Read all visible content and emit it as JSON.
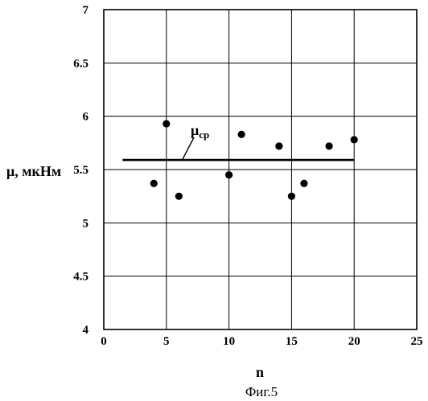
{
  "figure": {
    "caption": "Фиг.5"
  },
  "chart_data": {
    "type": "scatter",
    "xlabel": "n",
    "ylabel": "μ, мкНм",
    "xlim": [
      0,
      25
    ],
    "ylim": [
      4,
      7
    ],
    "x_ticks": [
      0,
      5,
      10,
      15,
      20,
      25
    ],
    "y_ticks": [
      4,
      4.5,
      5,
      5.5,
      6,
      6.5,
      7
    ],
    "x_tick_labels": [
      "0",
      "5",
      "10",
      "15",
      "20",
      "25"
    ],
    "y_tick_labels": [
      "4",
      "4.5",
      "5",
      "5.5",
      "6",
      "6.5",
      "7"
    ],
    "grid": true,
    "points": [
      {
        "x": 4,
        "y": 5.37
      },
      {
        "x": 5,
        "y": 5.93
      },
      {
        "x": 6,
        "y": 5.25
      },
      {
        "x": 10,
        "y": 5.45
      },
      {
        "x": 11,
        "y": 5.83
      },
      {
        "x": 14,
        "y": 5.72
      },
      {
        "x": 15,
        "y": 5.25
      },
      {
        "x": 16,
        "y": 5.37
      },
      {
        "x": 18,
        "y": 5.72
      },
      {
        "x": 20,
        "y": 5.78
      }
    ],
    "mean_line": {
      "label_main": "μ",
      "label_sub": "ср",
      "x": [
        1.5,
        20
      ],
      "y": 5.59
    },
    "colors": {
      "marks": "#000000",
      "grid": "#000000",
      "background": "#ffffff"
    }
  }
}
